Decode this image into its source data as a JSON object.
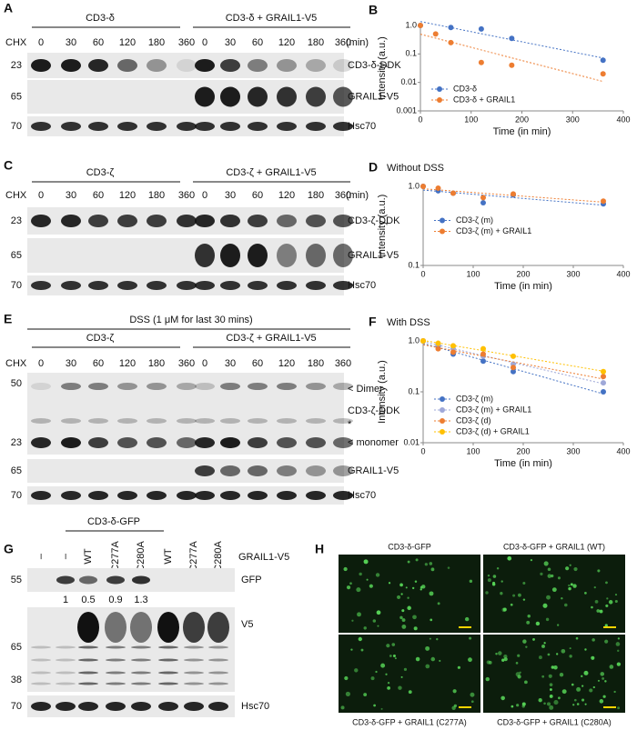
{
  "panels": {
    "A": {
      "label": "A",
      "chx": "CHX",
      "groups": [
        "CD3-δ",
        "CD3-δ + GRAIL1-V5"
      ],
      "lanes": [
        0,
        30,
        60,
        120,
        180,
        360
      ],
      "unit": "(min)",
      "rows": [
        {
          "mw": 23,
          "name": "CD3-δ-DDK"
        },
        {
          "mw": 65,
          "name": "GRAIL1-V5"
        },
        {
          "mw": 70,
          "name": "Hsc70"
        }
      ]
    },
    "C": {
      "label": "C",
      "chx": "CHX",
      "groups": [
        "CD3-ζ",
        "CD3-ζ + GRAIL1-V5"
      ],
      "lanes": [
        0,
        30,
        60,
        120,
        180,
        360
      ],
      "unit": "(min)",
      "rows": [
        {
          "mw": 23,
          "name": "CD3-ζ-DDK"
        },
        {
          "mw": 65,
          "name": "GRAIL1-V5"
        },
        {
          "mw": 70,
          "name": "Hsc70"
        }
      ]
    },
    "E": {
      "label": "E",
      "treatment": "DSS (1 μM for last 30 mins)",
      "chx": "CHX",
      "groups": [
        "CD3-ζ",
        "CD3-ζ + GRAIL1-V5"
      ],
      "lanes": [
        0,
        30,
        60,
        120,
        180,
        360
      ],
      "markers": [
        50,
        23
      ],
      "annotations": [
        "< Dimer",
        "CD3-ζ-DDK",
        "*",
        "< monomer"
      ],
      "rows": [
        {
          "mw": 65,
          "name": "GRAIL1-V5"
        },
        {
          "mw": 70,
          "name": "Hsc70"
        }
      ]
    },
    "G": {
      "label": "G",
      "group": "CD3-δ-GFP",
      "lanes": [
        "–",
        "–",
        "WT",
        "C277A",
        "C280A",
        "WT",
        "C277A",
        "C280A"
      ],
      "lane_row": "GRAIL1-V5",
      "rows": [
        {
          "mw": [
            55
          ],
          "name": "GFP"
        },
        {
          "mw": [
            65,
            38
          ],
          "name": "V5"
        },
        {
          "mw": [
            70
          ],
          "name": "Hsc70"
        }
      ],
      "quant": [
        1,
        0.5,
        0.9,
        1.3
      ]
    },
    "H": {
      "label": "H",
      "images": [
        "CD3-δ-GFP",
        "CD3-δ-GFP + GRAIL1 (WT)",
        "CD3-δ-GFP + GRAIL1 (C277A)",
        "CD3-δ-GFP + GRAIL1 (C280A)"
      ]
    }
  },
  "chart_data": [
    {
      "type": "scatter",
      "panel": "B",
      "x_label": "Time (in min)",
      "y_label": "Intensity (a.u.)",
      "log_y": true,
      "legend": "lower left",
      "xlim": [
        0,
        400
      ],
      "xticks": [
        0,
        100,
        200,
        300,
        400
      ],
      "ylim": [
        0.001,
        1
      ],
      "yticks": [
        0.001,
        0.01,
        0.1,
        {
          "value": 1,
          "label": "1.0"
        }
      ],
      "series": [
        {
          "name": "CD3-δ",
          "color": "#4472c4",
          "x": [
            0,
            60,
            120,
            180,
            360
          ],
          "values": [
            1,
            0.85,
            0.75,
            0.35,
            0.06
          ]
        },
        {
          "name": "CD3-δ + GRAIL1",
          "color": "#ed7d31",
          "x": [
            0,
            30,
            60,
            120,
            180,
            360
          ],
          "values": [
            1,
            0.5,
            0.25,
            0.05,
            0.04,
            0.02
          ]
        }
      ]
    },
    {
      "type": "scatter",
      "panel": "D",
      "title": "Without DSS",
      "x_label": "Time (in min)",
      "y_label": "Intensity (a.u.)",
      "log_y": true,
      "legend": "center left",
      "xlim": [
        0,
        400
      ],
      "xticks": [
        0,
        100,
        200,
        300,
        400
      ],
      "ylim": [
        0.1,
        1
      ],
      "yticks": [
        0.1,
        {
          "value": 1,
          "label": "1.0"
        }
      ],
      "series": [
        {
          "name": "CD3-ζ (m)",
          "color": "#4472c4",
          "x": [
            0,
            30,
            60,
            120,
            180,
            360
          ],
          "values": [
            1,
            0.88,
            0.82,
            0.62,
            0.78,
            0.6
          ]
        },
        {
          "name": "CD3-ζ (m) + GRAIL1",
          "color": "#ed7d31",
          "x": [
            0,
            30,
            60,
            120,
            180,
            360
          ],
          "values": [
            1,
            0.95,
            0.82,
            0.72,
            0.8,
            0.65
          ]
        }
      ]
    },
    {
      "type": "scatter",
      "panel": "F",
      "title": "With DSS",
      "x_label": "Time (in min)",
      "y_label": "Intensity (a.u.)",
      "log_y": true,
      "legend": "lower left",
      "xlim": [
        0,
        400
      ],
      "xticks": [
        0,
        100,
        200,
        300,
        400
      ],
      "ylim": [
        0.01,
        1
      ],
      "yticks": [
        0.01,
        0.1,
        {
          "value": 1,
          "label": "1.0"
        }
      ],
      "series": [
        {
          "name": "CD3-ζ (m)",
          "color": "#4472c4",
          "x": [
            0,
            30,
            60,
            120,
            180,
            360
          ],
          "values": [
            1,
            0.8,
            0.55,
            0.4,
            0.25,
            0.1
          ]
        },
        {
          "name": "CD3-ζ (m) + GRAIL1",
          "color": "#9fa8d8",
          "x": [
            0,
            30,
            60,
            120,
            180,
            360
          ],
          "values": [
            1,
            0.85,
            0.7,
            0.5,
            0.35,
            0.15
          ]
        },
        {
          "name": "CD3-ζ (d)",
          "color": "#ed7d31",
          "x": [
            0,
            30,
            60,
            120,
            180,
            360
          ],
          "values": [
            1,
            0.7,
            0.6,
            0.55,
            0.3,
            0.2
          ]
        },
        {
          "name": "CD3-ζ (d) + GRAIL1",
          "color": "#ffc000",
          "x": [
            0,
            30,
            60,
            120,
            180,
            360
          ],
          "values": [
            1,
            0.9,
            0.8,
            0.7,
            0.5,
            0.25
          ]
        }
      ]
    }
  ]
}
